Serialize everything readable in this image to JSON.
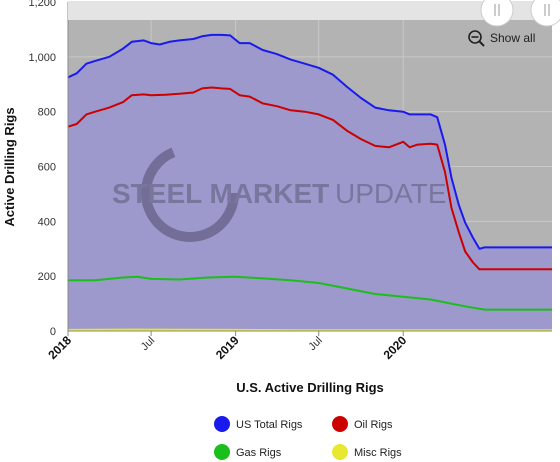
{
  "chart_data": {
    "type": "area",
    "title": "",
    "xlabel": "U.S. Active Drilling Rigs",
    "ylabel": "Active Drilling Rigs",
    "ylim": [
      0,
      1200
    ],
    "yticks": [
      0,
      200,
      400,
      600,
      800,
      1000,
      1200
    ],
    "ytick_labels": [
      "0",
      "200",
      "400",
      "600",
      "800",
      "1,000",
      "1,200"
    ],
    "xlim": [
      "2018-01-01",
      "2020-11-20"
    ],
    "xticks": [
      {
        "date": "2018-01-01",
        "label": "2018",
        "major": true
      },
      {
        "date": "2018-07-01",
        "label": "Jul",
        "major": false
      },
      {
        "date": "2019-01-01",
        "label": "2019",
        "major": true
      },
      {
        "date": "2019-07-01",
        "label": "Jul",
        "major": false
      },
      {
        "date": "2020-01-01",
        "label": "2020",
        "major": true
      }
    ],
    "grid": true,
    "legend_position": "bottom",
    "watermark": {
      "bold": "STEEL MARKET",
      "light": "UPDATE"
    },
    "series": [
      {
        "name": "US Total Rigs",
        "color": "#1a1aee",
        "fill": "#9d99cc",
        "points": [
          [
            "2018-01-01",
            925
          ],
          [
            "2018-01-20",
            940
          ],
          [
            "2018-02-10",
            975
          ],
          [
            "2018-03-01",
            985
          ],
          [
            "2018-04-01",
            1000
          ],
          [
            "2018-05-01",
            1030
          ],
          [
            "2018-05-20",
            1055
          ],
          [
            "2018-06-15",
            1060
          ],
          [
            "2018-07-01",
            1050
          ],
          [
            "2018-07-20",
            1045
          ],
          [
            "2018-08-10",
            1055
          ],
          [
            "2018-09-01",
            1060
          ],
          [
            "2018-10-01",
            1065
          ],
          [
            "2018-10-20",
            1075
          ],
          [
            "2018-11-10",
            1080
          ],
          [
            "2018-12-01",
            1080
          ],
          [
            "2018-12-20",
            1078
          ],
          [
            "2019-01-10",
            1050
          ],
          [
            "2019-02-01",
            1050
          ],
          [
            "2019-03-01",
            1025
          ],
          [
            "2019-04-01",
            1010
          ],
          [
            "2019-05-01",
            990
          ],
          [
            "2019-06-01",
            975
          ],
          [
            "2019-07-01",
            960
          ],
          [
            "2019-08-01",
            935
          ],
          [
            "2019-09-01",
            890
          ],
          [
            "2019-10-01",
            850
          ],
          [
            "2019-11-01",
            815
          ],
          [
            "2019-12-01",
            805
          ],
          [
            "2020-01-01",
            800
          ],
          [
            "2020-01-15",
            790
          ],
          [
            "2020-02-01",
            790
          ],
          [
            "2020-03-01",
            790
          ],
          [
            "2020-03-15",
            780
          ],
          [
            "2020-04-01",
            680
          ],
          [
            "2020-04-15",
            560
          ],
          [
            "2020-05-01",
            460
          ],
          [
            "2020-05-15",
            395
          ],
          [
            "2020-06-01",
            340
          ],
          [
            "2020-06-15",
            300
          ],
          [
            "2020-06-26",
            305
          ]
        ]
      },
      {
        "name": "Oil Rigs",
        "color": "#cc0000",
        "points": [
          [
            "2018-01-01",
            745
          ],
          [
            "2018-01-20",
            755
          ],
          [
            "2018-02-10",
            790
          ],
          [
            "2018-03-01",
            800
          ],
          [
            "2018-04-01",
            815
          ],
          [
            "2018-05-01",
            835
          ],
          [
            "2018-05-20",
            860
          ],
          [
            "2018-06-15",
            863
          ],
          [
            "2018-07-01",
            860
          ],
          [
            "2018-08-01",
            862
          ],
          [
            "2018-09-01",
            865
          ],
          [
            "2018-10-01",
            870
          ],
          [
            "2018-10-20",
            885
          ],
          [
            "2018-11-10",
            888
          ],
          [
            "2018-12-01",
            885
          ],
          [
            "2018-12-20",
            883
          ],
          [
            "2019-01-10",
            860
          ],
          [
            "2019-02-01",
            855
          ],
          [
            "2019-03-01",
            830
          ],
          [
            "2019-04-01",
            820
          ],
          [
            "2019-05-01",
            805
          ],
          [
            "2019-06-01",
            800
          ],
          [
            "2019-07-01",
            790
          ],
          [
            "2019-08-01",
            770
          ],
          [
            "2019-09-01",
            730
          ],
          [
            "2019-10-01",
            700
          ],
          [
            "2019-11-01",
            675
          ],
          [
            "2019-12-01",
            670
          ],
          [
            "2020-01-01",
            690
          ],
          [
            "2020-01-15",
            670
          ],
          [
            "2020-02-01",
            680
          ],
          [
            "2020-03-01",
            683
          ],
          [
            "2020-03-15",
            680
          ],
          [
            "2020-04-01",
            580
          ],
          [
            "2020-04-15",
            450
          ],
          [
            "2020-05-01",
            360
          ],
          [
            "2020-05-15",
            290
          ],
          [
            "2020-06-01",
            250
          ],
          [
            "2020-06-15",
            225
          ],
          [
            "2020-06-26",
            225
          ]
        ]
      },
      {
        "name": "Gas Rigs",
        "color": "#1bbf1b",
        "points": [
          [
            "2018-01-01",
            185
          ],
          [
            "2018-03-01",
            185
          ],
          [
            "2018-05-01",
            195
          ],
          [
            "2018-06-01",
            198
          ],
          [
            "2018-07-01",
            190
          ],
          [
            "2018-09-01",
            188
          ],
          [
            "2018-11-01",
            195
          ],
          [
            "2019-01-01",
            198
          ],
          [
            "2019-03-01",
            192
          ],
          [
            "2019-05-01",
            185
          ],
          [
            "2019-07-01",
            175
          ],
          [
            "2019-09-01",
            155
          ],
          [
            "2019-11-01",
            135
          ],
          [
            "2020-01-01",
            125
          ],
          [
            "2020-03-01",
            115
          ],
          [
            "2020-04-15",
            100
          ],
          [
            "2020-05-15",
            90
          ],
          [
            "2020-06-26",
            78
          ]
        ]
      },
      {
        "name": "Misc Rigs",
        "color": "#e8e830",
        "points": [
          [
            "2018-01-01",
            4
          ],
          [
            "2018-06-01",
            5
          ],
          [
            "2019-01-01",
            4
          ],
          [
            "2019-06-01",
            3
          ],
          [
            "2020-01-01",
            3
          ],
          [
            "2020-06-26",
            3
          ]
        ]
      }
    ]
  },
  "ui": {
    "show_all_label": "Show all"
  }
}
